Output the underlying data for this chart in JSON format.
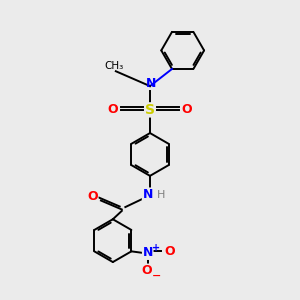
{
  "bg_color": "#ebebeb",
  "bond_color": "#000000",
  "bw": 1.4,
  "fig_w": 3.0,
  "fig_h": 3.0,
  "dpi": 100,
  "colors": {
    "N": "#0000ff",
    "O": "#ff0000",
    "S": "#cccc00",
    "C": "#000000",
    "H": "#808080"
  }
}
